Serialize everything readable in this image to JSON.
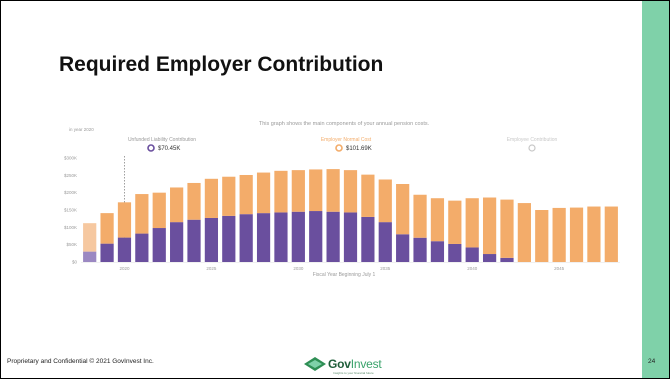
{
  "slide": {
    "title": "Required Employer Contribution",
    "footer": "Proprietary and Confidential © 2021 GovInvest Inc.",
    "page_number": "24",
    "logo_text_a": "Gov",
    "logo_text_b": "Invest",
    "logo_tagline": "Insights to your financial future",
    "accent_color": "#7fd1a9"
  },
  "chart_data": {
    "type": "bar",
    "stacked": true,
    "subtitle": "This graph shows the main components of your annual pension costs.",
    "year_label": "in year 2020",
    "xlabel": "Fiscal Year Beginning July 1",
    "ylim": [
      0,
      300000
    ],
    "yticks": [
      0,
      50000,
      100000,
      150000,
      200000,
      250000,
      300000
    ],
    "ytick_labels": [
      "$0",
      "$50K",
      "$100K",
      "$150K",
      "$200K",
      "$250K",
      "$300K"
    ],
    "xtick_labels": [
      {
        "label": "2020",
        "index": 2
      },
      {
        "label": "2025",
        "index": 7
      },
      {
        "label": "2030",
        "index": 12
      },
      {
        "label": "2035",
        "index": 17
      },
      {
        "label": "2040",
        "index": 22
      },
      {
        "label": "2045",
        "index": 27
      }
    ],
    "highlight_index": 2,
    "categories": [
      "2018",
      "2019",
      "2020",
      "2021",
      "2022",
      "2023",
      "2024",
      "2025",
      "2026",
      "2027",
      "2028",
      "2029",
      "2030",
      "2031",
      "2032",
      "2033",
      "2034",
      "2035",
      "2036",
      "2037",
      "2038",
      "2039",
      "2040",
      "2041",
      "2042",
      "2043",
      "2044",
      "2045",
      "2046",
      "2047",
      "2048"
    ],
    "series": [
      {
        "name": "Unfunded Liability Contribution",
        "legend_value": "$70.45K",
        "color": "#6a4f9e",
        "values": [
          30000,
          53000,
          70450,
          82000,
          98000,
          115000,
          122000,
          127000,
          133000,
          138000,
          141000,
          143000,
          145000,
          147000,
          145000,
          143000,
          130000,
          115000,
          80000,
          70000,
          60000,
          52000,
          42000,
          23000,
          12000,
          0,
          0,
          0,
          0,
          0,
          0
        ]
      },
      {
        "name": "Employer Normal Cost",
        "legend_value": "$101.69K",
        "color": "#f3ac6a",
        "values": [
          82000,
          88000,
          101690,
          114000,
          102000,
          100000,
          106000,
          113000,
          113000,
          113000,
          117000,
          120000,
          120000,
          120000,
          123000,
          122000,
          122000,
          123000,
          145000,
          124000,
          124000,
          125000,
          142000,
          163000,
          168000,
          170000,
          150000,
          156000,
          157000,
          160000,
          160000
        ]
      },
      {
        "name": "Employee Contribution",
        "legend_value": "",
        "color": "#cfcfcf",
        "values": [
          0,
          0,
          0,
          0,
          0,
          0,
          0,
          0,
          0,
          0,
          0,
          0,
          0,
          0,
          0,
          0,
          0,
          0,
          0,
          0,
          0,
          0,
          0,
          0,
          0,
          0,
          0,
          0,
          0,
          0,
          0
        ]
      }
    ]
  }
}
